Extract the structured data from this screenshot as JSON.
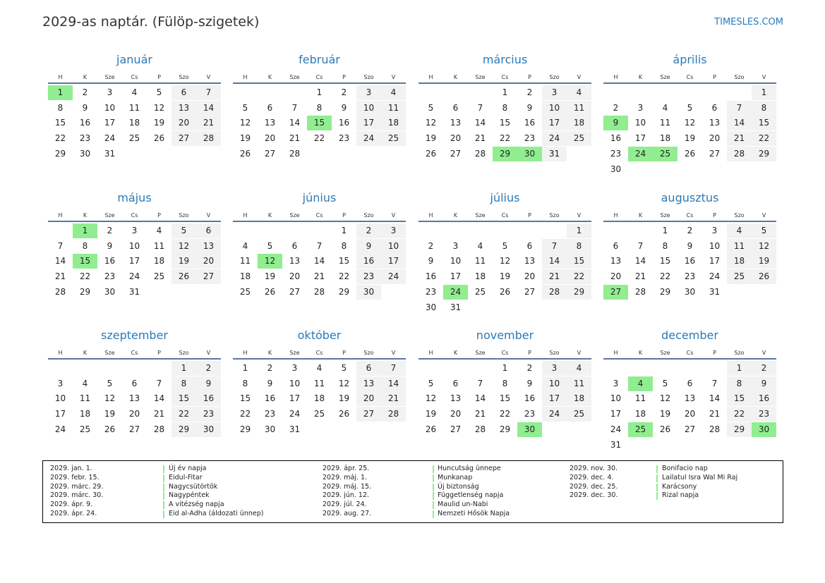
{
  "header": {
    "title": "2029-as naptár. (Fülöp-szigetek)",
    "site": "TIMESLES.COM"
  },
  "weekdays": [
    "H",
    "K",
    "Sze",
    "Cs",
    "P",
    "Szo",
    "V"
  ],
  "highlight_color": "#90ee90",
  "months": [
    {
      "name": "január",
      "highlighted_days": [
        1
      ],
      "weeks": [
        [
          1,
          2,
          3,
          4,
          5,
          6,
          7
        ],
        [
          8,
          9,
          10,
          11,
          12,
          13,
          14
        ],
        [
          15,
          16,
          17,
          18,
          19,
          20,
          21
        ],
        [
          22,
          23,
          24,
          25,
          26,
          27,
          28
        ],
        [
          29,
          30,
          31,
          null,
          null,
          null,
          null
        ]
      ]
    },
    {
      "name": "február",
      "highlighted_days": [
        15
      ],
      "weeks": [
        [
          null,
          null,
          null,
          1,
          2,
          3,
          4
        ],
        [
          5,
          6,
          7,
          8,
          9,
          10,
          11
        ],
        [
          12,
          13,
          14,
          15,
          16,
          17,
          18
        ],
        [
          19,
          20,
          21,
          22,
          23,
          24,
          25
        ],
        [
          26,
          27,
          28,
          null,
          null,
          null,
          null
        ]
      ]
    },
    {
      "name": "március",
      "highlighted_days": [
        29,
        30
      ],
      "weeks": [
        [
          null,
          null,
          null,
          1,
          2,
          3,
          4
        ],
        [
          5,
          6,
          7,
          8,
          9,
          10,
          11
        ],
        [
          12,
          13,
          14,
          15,
          16,
          17,
          18
        ],
        [
          19,
          20,
          21,
          22,
          23,
          24,
          25
        ],
        [
          26,
          27,
          28,
          29,
          30,
          31,
          null
        ]
      ]
    },
    {
      "name": "április",
      "highlighted_days": [
        9,
        24,
        25
      ],
      "weeks": [
        [
          null,
          null,
          null,
          null,
          null,
          null,
          1
        ],
        [
          2,
          3,
          4,
          5,
          6,
          7,
          8
        ],
        [
          9,
          10,
          11,
          12,
          13,
          14,
          15
        ],
        [
          16,
          17,
          18,
          19,
          20,
          21,
          22
        ],
        [
          23,
          24,
          25,
          26,
          27,
          28,
          29
        ],
        [
          30,
          null,
          null,
          null,
          null,
          null,
          null
        ]
      ]
    },
    {
      "name": "május",
      "highlighted_days": [
        1,
        15
      ],
      "weeks": [
        [
          null,
          1,
          2,
          3,
          4,
          5,
          6
        ],
        [
          7,
          8,
          9,
          10,
          11,
          12,
          13
        ],
        [
          14,
          15,
          16,
          17,
          18,
          19,
          20
        ],
        [
          21,
          22,
          23,
          24,
          25,
          26,
          27
        ],
        [
          28,
          29,
          30,
          31,
          null,
          null,
          null
        ]
      ]
    },
    {
      "name": "június",
      "highlighted_days": [
        12
      ],
      "weeks": [
        [
          null,
          null,
          null,
          null,
          1,
          2,
          3
        ],
        [
          4,
          5,
          6,
          7,
          8,
          9,
          10
        ],
        [
          11,
          12,
          13,
          14,
          15,
          16,
          17
        ],
        [
          18,
          19,
          20,
          21,
          22,
          23,
          24
        ],
        [
          25,
          26,
          27,
          28,
          29,
          30,
          null
        ]
      ]
    },
    {
      "name": "július",
      "highlighted_days": [
        24
      ],
      "weeks": [
        [
          null,
          null,
          null,
          null,
          null,
          null,
          1
        ],
        [
          2,
          3,
          4,
          5,
          6,
          7,
          8
        ],
        [
          9,
          10,
          11,
          12,
          13,
          14,
          15
        ],
        [
          16,
          17,
          18,
          19,
          20,
          21,
          22
        ],
        [
          23,
          24,
          25,
          26,
          27,
          28,
          29
        ],
        [
          30,
          31,
          null,
          null,
          null,
          null,
          null
        ]
      ]
    },
    {
      "name": "augusztus",
      "highlighted_days": [
        27
      ],
      "weeks": [
        [
          null,
          null,
          1,
          2,
          3,
          4,
          5
        ],
        [
          6,
          7,
          8,
          9,
          10,
          11,
          12
        ],
        [
          13,
          14,
          15,
          16,
          17,
          18,
          19
        ],
        [
          20,
          21,
          22,
          23,
          24,
          25,
          26
        ],
        [
          27,
          28,
          29,
          30,
          31,
          null,
          null
        ]
      ]
    },
    {
      "name": "szeptember",
      "highlighted_days": [],
      "weeks": [
        [
          null,
          null,
          null,
          null,
          null,
          1,
          2
        ],
        [
          3,
          4,
          5,
          6,
          7,
          8,
          9
        ],
        [
          10,
          11,
          12,
          13,
          14,
          15,
          16
        ],
        [
          17,
          18,
          19,
          20,
          21,
          22,
          23
        ],
        [
          24,
          25,
          26,
          27,
          28,
          29,
          30
        ]
      ]
    },
    {
      "name": "október",
      "highlighted_days": [],
      "weeks": [
        [
          1,
          2,
          3,
          4,
          5,
          6,
          7
        ],
        [
          8,
          9,
          10,
          11,
          12,
          13,
          14
        ],
        [
          15,
          16,
          17,
          18,
          19,
          20,
          21
        ],
        [
          22,
          23,
          24,
          25,
          26,
          27,
          28
        ],
        [
          29,
          30,
          31,
          null,
          null,
          null,
          null
        ]
      ]
    },
    {
      "name": "november",
      "highlighted_days": [
        30
      ],
      "weeks": [
        [
          null,
          null,
          null,
          1,
          2,
          3,
          4
        ],
        [
          5,
          6,
          7,
          8,
          9,
          10,
          11
        ],
        [
          12,
          13,
          14,
          15,
          16,
          17,
          18
        ],
        [
          19,
          20,
          21,
          22,
          23,
          24,
          25
        ],
        [
          26,
          27,
          28,
          29,
          30,
          null,
          null
        ]
      ]
    },
    {
      "name": "december",
      "highlighted_days": [
        4,
        25,
        30
      ],
      "weeks": [
        [
          null,
          null,
          null,
          null,
          null,
          1,
          2
        ],
        [
          3,
          4,
          5,
          6,
          7,
          8,
          9
        ],
        [
          10,
          11,
          12,
          13,
          14,
          15,
          16
        ],
        [
          17,
          18,
          19,
          20,
          21,
          22,
          23
        ],
        [
          24,
          25,
          26,
          27,
          28,
          29,
          30
        ],
        [
          31,
          null,
          null,
          null,
          null,
          null,
          null
        ]
      ]
    }
  ],
  "holidays": [
    {
      "date": "2029. jan. 1.",
      "name": "Új év napja"
    },
    {
      "date": "2029. febr. 15.",
      "name": "Eidul-Fitar"
    },
    {
      "date": "2029. márc. 29.",
      "name": "Nagycsütörtök"
    },
    {
      "date": "2029. márc. 30.",
      "name": "Nagypéntek"
    },
    {
      "date": "2029. ápr. 9.",
      "name": "A vitézség napja"
    },
    {
      "date": "2029. ápr. 24.",
      "name": "Eid al-Adha (áldozati ünnep)"
    },
    {
      "date": "2029. ápr. 25.",
      "name": "Huncutság ünnepe"
    },
    {
      "date": "2029. máj. 1.",
      "name": "Munkanap"
    },
    {
      "date": "2029. máj. 15.",
      "name": "Új biztonság"
    },
    {
      "date": "2029. jún. 12.",
      "name": "Függetlenség napja"
    },
    {
      "date": "2029. júl. 24.",
      "name": "Maulid un-Nabi"
    },
    {
      "date": "2029. aug. 27.",
      "name": "Nemzeti Hősök Napja"
    },
    {
      "date": "2029. nov. 30.",
      "name": "Bonifacio nap"
    },
    {
      "date": "2029. dec. 4.",
      "name": "Lailatul Isra Wal Mi Raj"
    },
    {
      "date": "2029. dec. 25.",
      "name": "Karácsony"
    },
    {
      "date": "2029. dec. 30.",
      "name": "Rizal napja"
    }
  ]
}
